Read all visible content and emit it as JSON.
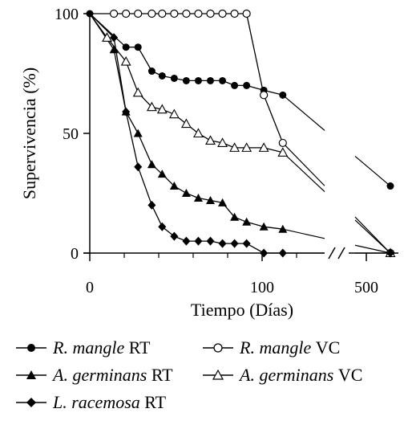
{
  "chart_data": {
    "type": "line",
    "xlabel": "Tiempo (Días)",
    "ylabel": "Supervivencia (%)",
    "ylim": [
      0,
      100
    ],
    "yticks": [
      0,
      50,
      100
    ],
    "xticks": [
      "0",
      "100",
      "500"
    ],
    "x_break": true,
    "legend_position": "bottom",
    "series": [
      {
        "name": "R. mangle RT",
        "species": "R. mangle",
        "treatment": "RT",
        "marker": "circle-filled",
        "x": [
          0,
          21,
          28,
          36,
          42,
          49,
          56,
          63,
          70,
          77,
          84,
          91,
          101,
          112,
          540
        ],
        "y": [
          100,
          86,
          86,
          76,
          74,
          73,
          72,
          72,
          72,
          72,
          70,
          70,
          68,
          66,
          28
        ]
      },
      {
        "name": "R. mangle VC",
        "species": "R. mangle",
        "treatment": "VC",
        "marker": "circle-open",
        "x": [
          0,
          14,
          21,
          28,
          36,
          42,
          49,
          56,
          63,
          70,
          77,
          84,
          91,
          101,
          112,
          540
        ],
        "y": [
          100,
          100,
          100,
          100,
          100,
          100,
          100,
          100,
          100,
          100,
          100,
          100,
          100,
          66,
          46,
          0
        ]
      },
      {
        "name": "A. germinans RT",
        "species": "A. germinans",
        "treatment": "RT",
        "marker": "triangle-filled",
        "x": [
          0,
          14,
          21,
          28,
          36,
          42,
          49,
          56,
          63,
          70,
          77,
          84,
          91,
          101,
          112,
          540
        ],
        "y": [
          100,
          85,
          59,
          50,
          37,
          33,
          28,
          25,
          23,
          22,
          21,
          15,
          13,
          11,
          10,
          0
        ]
      },
      {
        "name": "A. germinans VC",
        "species": "A. germinans",
        "treatment": "VC",
        "marker": "triangle-open",
        "x": [
          0,
          10,
          21,
          28,
          36,
          42,
          49,
          56,
          63,
          70,
          77,
          84,
          91,
          101,
          112,
          540
        ],
        "y": [
          100,
          90,
          80,
          67,
          61,
          60,
          58,
          54,
          50,
          47,
          46,
          44,
          44,
          44,
          42,
          0
        ]
      },
      {
        "name": "L. racemosa RT",
        "species": "L. racemosa",
        "treatment": "RT",
        "marker": "diamond-filled",
        "x": [
          0,
          14,
          21,
          28,
          36,
          42,
          49,
          56,
          63,
          70,
          77,
          84,
          91,
          101,
          112,
          540
        ],
        "y": [
          100,
          90,
          59,
          36,
          20,
          11,
          7,
          5,
          5,
          5,
          4,
          4,
          4,
          0,
          0,
          0
        ]
      }
    ]
  }
}
